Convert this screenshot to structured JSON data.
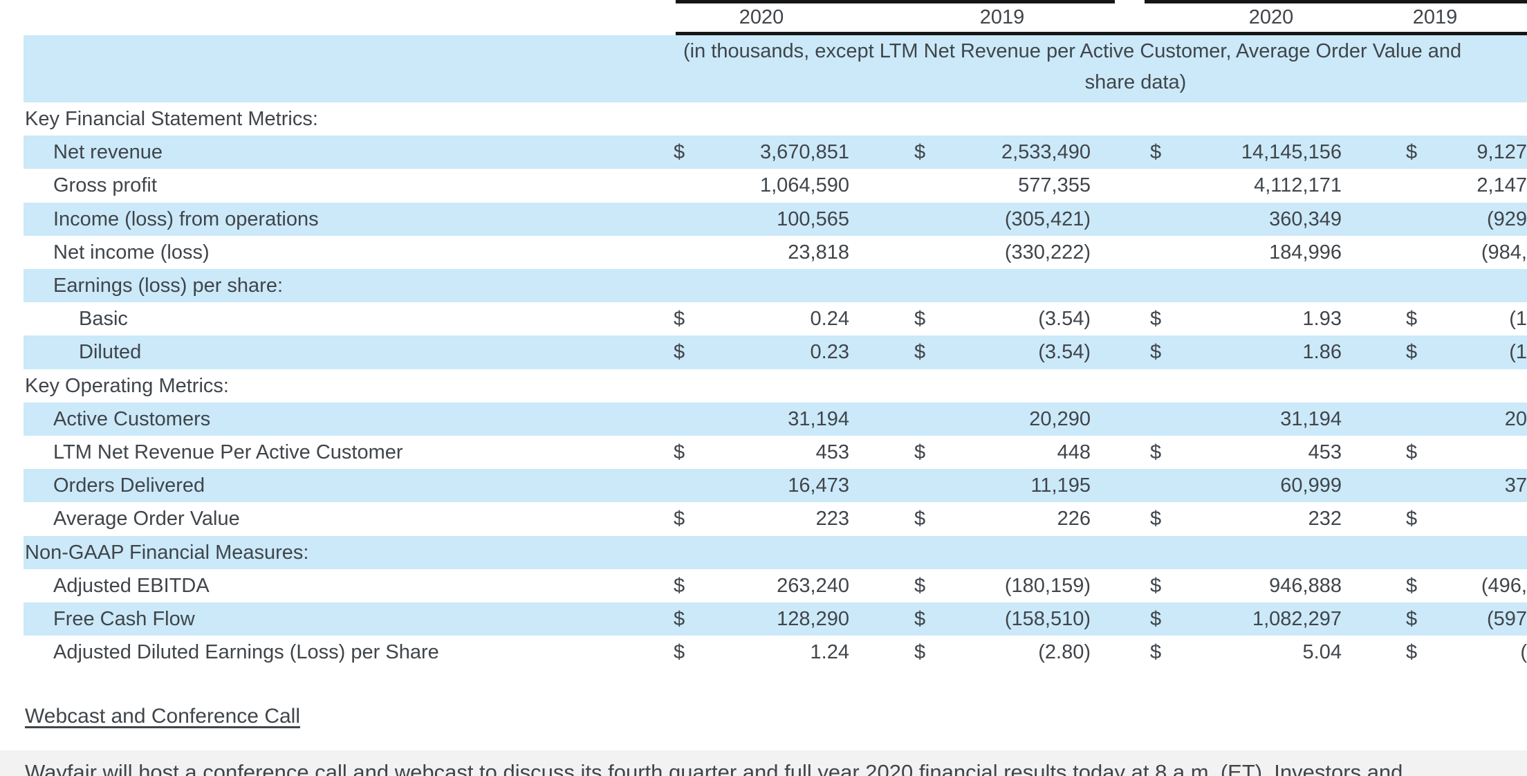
{
  "table": {
    "years": [
      "2020",
      "2019",
      "2020",
      "2019"
    ],
    "note_line1": "(in thousands, except LTM Net Revenue per Active Customer, Average Order Value and",
    "note_line2": "share data)",
    "rows": [
      {
        "label": "Key Financial Statement Metrics:",
        "level": 0,
        "cells": []
      },
      {
        "label": "Net revenue",
        "level": 1,
        "cells": [
          [
            "$",
            "3,670,851"
          ],
          [
            "$",
            "2,533,490"
          ],
          [
            "$",
            "14,145,156"
          ],
          [
            "$",
            "9,127"
          ]
        ]
      },
      {
        "label": "Gross profit",
        "level": 1,
        "cells": [
          [
            "",
            "1,064,590"
          ],
          [
            "",
            "577,355"
          ],
          [
            "",
            "4,112,171"
          ],
          [
            "",
            "2,147"
          ]
        ]
      },
      {
        "label": "Income (loss) from operations",
        "level": 1,
        "cells": [
          [
            "",
            "100,565"
          ],
          [
            "",
            "(305,421)"
          ],
          [
            "",
            "360,349"
          ],
          [
            "",
            "(929"
          ]
        ]
      },
      {
        "label": "Net income (loss)",
        "level": 1,
        "cells": [
          [
            "",
            "23,818"
          ],
          [
            "",
            "(330,222)"
          ],
          [
            "",
            "184,996"
          ],
          [
            "",
            "(984,"
          ]
        ]
      },
      {
        "label": "Earnings (loss) per share:",
        "level": 1,
        "cells": []
      },
      {
        "label": "Basic",
        "level": 2,
        "cells": [
          [
            "$",
            "0.24"
          ],
          [
            "$",
            "(3.54)"
          ],
          [
            "$",
            "1.93"
          ],
          [
            "$",
            "(1"
          ]
        ]
      },
      {
        "label": "Diluted",
        "level": 2,
        "cells": [
          [
            "$",
            "0.23"
          ],
          [
            "$",
            "(3.54)"
          ],
          [
            "$",
            "1.86"
          ],
          [
            "$",
            "(1"
          ]
        ]
      },
      {
        "label": "Key Operating Metrics:",
        "level": 0,
        "cells": []
      },
      {
        "label": "Active Customers",
        "level": 1,
        "cells": [
          [
            "",
            "31,194"
          ],
          [
            "",
            "20,290"
          ],
          [
            "",
            "31,194"
          ],
          [
            "",
            "20"
          ]
        ]
      },
      {
        "label": "LTM Net Revenue Per Active Customer",
        "level": 1,
        "cells": [
          [
            "$",
            "453"
          ],
          [
            "$",
            "448"
          ],
          [
            "$",
            "453"
          ],
          [
            "$",
            ""
          ]
        ]
      },
      {
        "label": "Orders Delivered",
        "level": 1,
        "cells": [
          [
            "",
            "16,473"
          ],
          [
            "",
            "11,195"
          ],
          [
            "",
            "60,999"
          ],
          [
            "",
            "37"
          ]
        ]
      },
      {
        "label": "Average Order Value",
        "level": 1,
        "cells": [
          [
            "$",
            "223"
          ],
          [
            "$",
            "226"
          ],
          [
            "$",
            "232"
          ],
          [
            "$",
            ""
          ]
        ]
      },
      {
        "label": "Non-GAAP Financial Measures:",
        "level": 0,
        "cells": []
      },
      {
        "label": "Adjusted EBITDA",
        "level": 1,
        "cells": [
          [
            "$",
            "263,240"
          ],
          [
            "$",
            "(180,159)"
          ],
          [
            "$",
            "946,888"
          ],
          [
            "$",
            "(496,"
          ]
        ]
      },
      {
        "label": "Free Cash Flow",
        "level": 1,
        "cells": [
          [
            "$",
            "128,290"
          ],
          [
            "$",
            "(158,510)"
          ],
          [
            "$",
            "1,082,297"
          ],
          [
            "$",
            "(597"
          ]
        ]
      },
      {
        "label": "Adjusted Diluted Earnings (Loss) per Share",
        "level": 1,
        "cells": [
          [
            "$",
            "1.24"
          ],
          [
            "$",
            "(2.80)"
          ],
          [
            "$",
            "5.04"
          ],
          [
            "$",
            "("
          ]
        ]
      }
    ]
  },
  "footer": {
    "heading": "Webcast and Conference Call",
    "paragraph": "Wayfair will host a conference call and webcast to discuss its fourth quarter and full year 2020 financial results today at 8 a.m. (ET). Investors and"
  },
  "colors": {
    "stripe_blue": "#cbe9f9",
    "text": "#40454a",
    "rule_black": "#161616",
    "footer_band": "#f2f2f2"
  }
}
